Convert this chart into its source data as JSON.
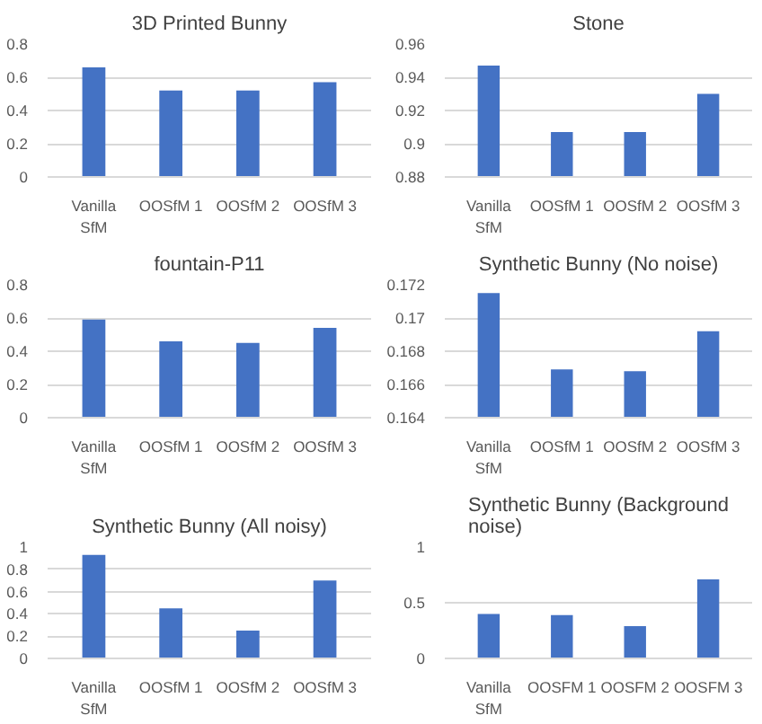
{
  "chart_data": [
    {
      "type": "bar",
      "title": "3D Printed Bunny",
      "categories": [
        "Vanilla\nSfM",
        "OOSfM 1",
        "OOSfM 2",
        "OOSfM 3"
      ],
      "values": [
        0.66,
        0.52,
        0.52,
        0.57
      ],
      "color": "#4472c4",
      "ylim": [
        0,
        0.8
      ],
      "yticks": [
        {
          "value": 0,
          "label": "0"
        },
        {
          "value": 0.2,
          "label": "0.2"
        },
        {
          "value": 0.4,
          "label": "0.4"
        },
        {
          "value": 0.6,
          "label": "0.6"
        },
        {
          "value": 0.8,
          "label": "0.8"
        }
      ],
      "grid": "y"
    },
    {
      "type": "bar",
      "title": "Stone",
      "categories": [
        "Vanilla\nSfM",
        "OOSfM 1",
        "OOSfM 2",
        "OOSfM 3"
      ],
      "values": [
        0.947,
        0.907,
        0.907,
        0.93
      ],
      "color": "#4472c4",
      "ylim": [
        0.88,
        0.96
      ],
      "yticks": [
        {
          "value": 0.88,
          "label": "0.88"
        },
        {
          "value": 0.9,
          "label": "0.9"
        },
        {
          "value": 0.92,
          "label": "0.92"
        },
        {
          "value": 0.94,
          "label": "0.94"
        },
        {
          "value": 0.96,
          "label": "0.96"
        }
      ],
      "grid": "y"
    },
    {
      "type": "bar",
      "title": "fountain-P11",
      "categories": [
        "Vanilla\nSfM",
        "OOSfM 1",
        "OOSfM 2",
        "OOSfM 3"
      ],
      "values": [
        0.59,
        0.46,
        0.45,
        0.54
      ],
      "color": "#4472c4",
      "ylim": [
        0,
        0.8
      ],
      "yticks": [
        {
          "value": 0,
          "label": "0"
        },
        {
          "value": 0.2,
          "label": "0.2"
        },
        {
          "value": 0.4,
          "label": "0.4"
        },
        {
          "value": 0.6,
          "label": "0.6"
        },
        {
          "value": 0.8,
          "label": "0.8"
        }
      ],
      "grid": "y"
    },
    {
      "type": "bar",
      "title": "Synthetic Bunny (No noise)",
      "categories": [
        "Vanilla\nSfM",
        "OOSfM 1",
        "OOSfM 2",
        "OOSfM 3"
      ],
      "values": [
        0.1715,
        0.1669,
        0.1668,
        0.1692
      ],
      "color": "#4472c4",
      "ylim": [
        0.164,
        0.172
      ],
      "yticks": [
        {
          "value": 0.164,
          "label": "0.164"
        },
        {
          "value": 0.166,
          "label": "0.166"
        },
        {
          "value": 0.168,
          "label": "0.168"
        },
        {
          "value": 0.17,
          "label": "0.17"
        },
        {
          "value": 0.172,
          "label": "0.172"
        }
      ],
      "grid": "y"
    },
    {
      "type": "bar",
      "title": "Synthetic Bunny (All noisy)",
      "categories": [
        "Vanilla\nSfM",
        "OOSfM 1",
        "OOSfM 2",
        "OOSfM 3"
      ],
      "values": [
        0.93,
        0.45,
        0.25,
        0.7
      ],
      "color": "#4472c4",
      "ylim": [
        0,
        1
      ],
      "yticks": [
        {
          "value": 0,
          "label": "0"
        },
        {
          "value": 0.2,
          "label": "0.2"
        },
        {
          "value": 0.4,
          "label": "0.4"
        },
        {
          "value": 0.6,
          "label": "0.6"
        },
        {
          "value": 0.8,
          "label": "0.8"
        },
        {
          "value": 1,
          "label": "1"
        }
      ],
      "grid": "y"
    },
    {
      "type": "bar",
      "title": "Synthetic Bunny (Background\nnoise)",
      "categories": [
        "Vanilla\nSfM",
        "OOSFM 1",
        "OOSFM 2",
        "OOSFM 3"
      ],
      "values": [
        0.4,
        0.39,
        0.29,
        0.71
      ],
      "color": "#4472c4",
      "ylim": [
        0,
        1
      ],
      "yticks": [
        {
          "value": 0,
          "label": "0"
        },
        {
          "value": 0.5,
          "label": "0.5"
        },
        {
          "value": 1,
          "label": "1"
        }
      ],
      "grid": "y"
    }
  ]
}
